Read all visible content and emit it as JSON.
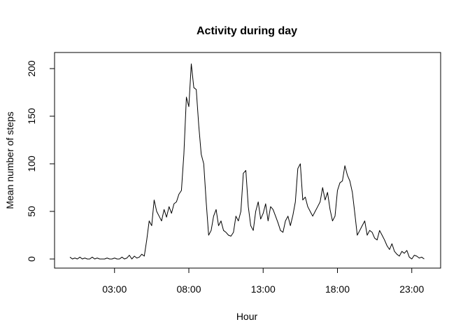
{
  "chart_data": {
    "type": "line",
    "title": "Activity during day",
    "xlabel": "Hour",
    "ylabel": "Mean number of steps",
    "xlim": [
      "00:00",
      "24:00"
    ],
    "ylim": [
      0,
      210
    ],
    "x_tick_labels": [
      "03:00",
      "08:00",
      "13:00",
      "18:00",
      "23:00"
    ],
    "y_tick_labels": [
      "0",
      "50",
      "100",
      "150",
      "200"
    ],
    "grid": false,
    "legend": "none",
    "series": [
      {
        "color": "#000000",
        "x": [
          "00:00",
          "00:10",
          "00:20",
          "00:30",
          "00:40",
          "00:50",
          "01:00",
          "01:10",
          "01:20",
          "01:30",
          "01:40",
          "01:50",
          "02:00",
          "02:10",
          "02:20",
          "02:30",
          "02:40",
          "02:50",
          "03:00",
          "03:10",
          "03:20",
          "03:30",
          "03:40",
          "03:50",
          "04:00",
          "04:10",
          "04:20",
          "04:30",
          "04:40",
          "04:50",
          "05:00",
          "05:10",
          "05:20",
          "05:30",
          "05:40",
          "05:50",
          "06:00",
          "06:10",
          "06:20",
          "06:30",
          "06:40",
          "06:50",
          "07:00",
          "07:10",
          "07:20",
          "07:30",
          "07:40",
          "07:50",
          "08:00",
          "08:10",
          "08:20",
          "08:30",
          "08:40",
          "08:50",
          "09:00",
          "09:10",
          "09:20",
          "09:30",
          "09:40",
          "09:50",
          "10:00",
          "10:10",
          "10:20",
          "10:30",
          "10:40",
          "10:50",
          "11:00",
          "11:10",
          "11:20",
          "11:30",
          "11:40",
          "11:50",
          "12:00",
          "12:10",
          "12:20",
          "12:30",
          "12:40",
          "12:50",
          "13:00",
          "13:10",
          "13:20",
          "13:30",
          "13:40",
          "13:50",
          "14:00",
          "14:10",
          "14:20",
          "14:30",
          "14:40",
          "14:50",
          "15:00",
          "15:10",
          "15:20",
          "15:30",
          "15:40",
          "15:50",
          "16:00",
          "16:10",
          "16:20",
          "16:30",
          "16:40",
          "16:50",
          "17:00",
          "17:10",
          "17:20",
          "17:30",
          "17:40",
          "17:50",
          "18:00",
          "18:10",
          "18:20",
          "18:30",
          "18:40",
          "18:50",
          "19:00",
          "19:10",
          "19:20",
          "19:30",
          "19:40",
          "19:50",
          "20:00",
          "20:10",
          "20:20",
          "20:30",
          "20:40",
          "20:50",
          "21:00",
          "21:10",
          "21:20",
          "21:30",
          "21:40",
          "21:50",
          "22:00",
          "22:10",
          "22:20",
          "22:30",
          "22:40",
          "22:50",
          "23:00",
          "23:10",
          "23:20",
          "23:30",
          "23:40",
          "23:50"
        ],
        "y": [
          2,
          0,
          1,
          0,
          2,
          0,
          1,
          0,
          0,
          2,
          0,
          1,
          0,
          0,
          0,
          1,
          0,
          0,
          1,
          0,
          0,
          2,
          0,
          1,
          4,
          0,
          3,
          1,
          2,
          5,
          3,
          20,
          40,
          35,
          62,
          50,
          45,
          40,
          52,
          44,
          55,
          48,
          58,
          60,
          68,
          72,
          110,
          170,
          160,
          205,
          180,
          178,
          140,
          110,
          100,
          60,
          25,
          30,
          45,
          52,
          35,
          40,
          30,
          28,
          25,
          24,
          28,
          45,
          40,
          50,
          90,
          93,
          55,
          35,
          30,
          50,
          60,
          42,
          48,
          58,
          40,
          55,
          52,
          45,
          38,
          30,
          28,
          40,
          45,
          35,
          46,
          60,
          95,
          100,
          62,
          65,
          55,
          50,
          45,
          50,
          55,
          60,
          75,
          62,
          70,
          52,
          40,
          45,
          72,
          80,
          82,
          98,
          88,
          82,
          70,
          48,
          25,
          30,
          35,
          40,
          25,
          30,
          28,
          22,
          20,
          30,
          25,
          20,
          14,
          10,
          16,
          8,
          5,
          3,
          8,
          6,
          9,
          2,
          0,
          4,
          3,
          1,
          2,
          0
        ]
      }
    ]
  }
}
